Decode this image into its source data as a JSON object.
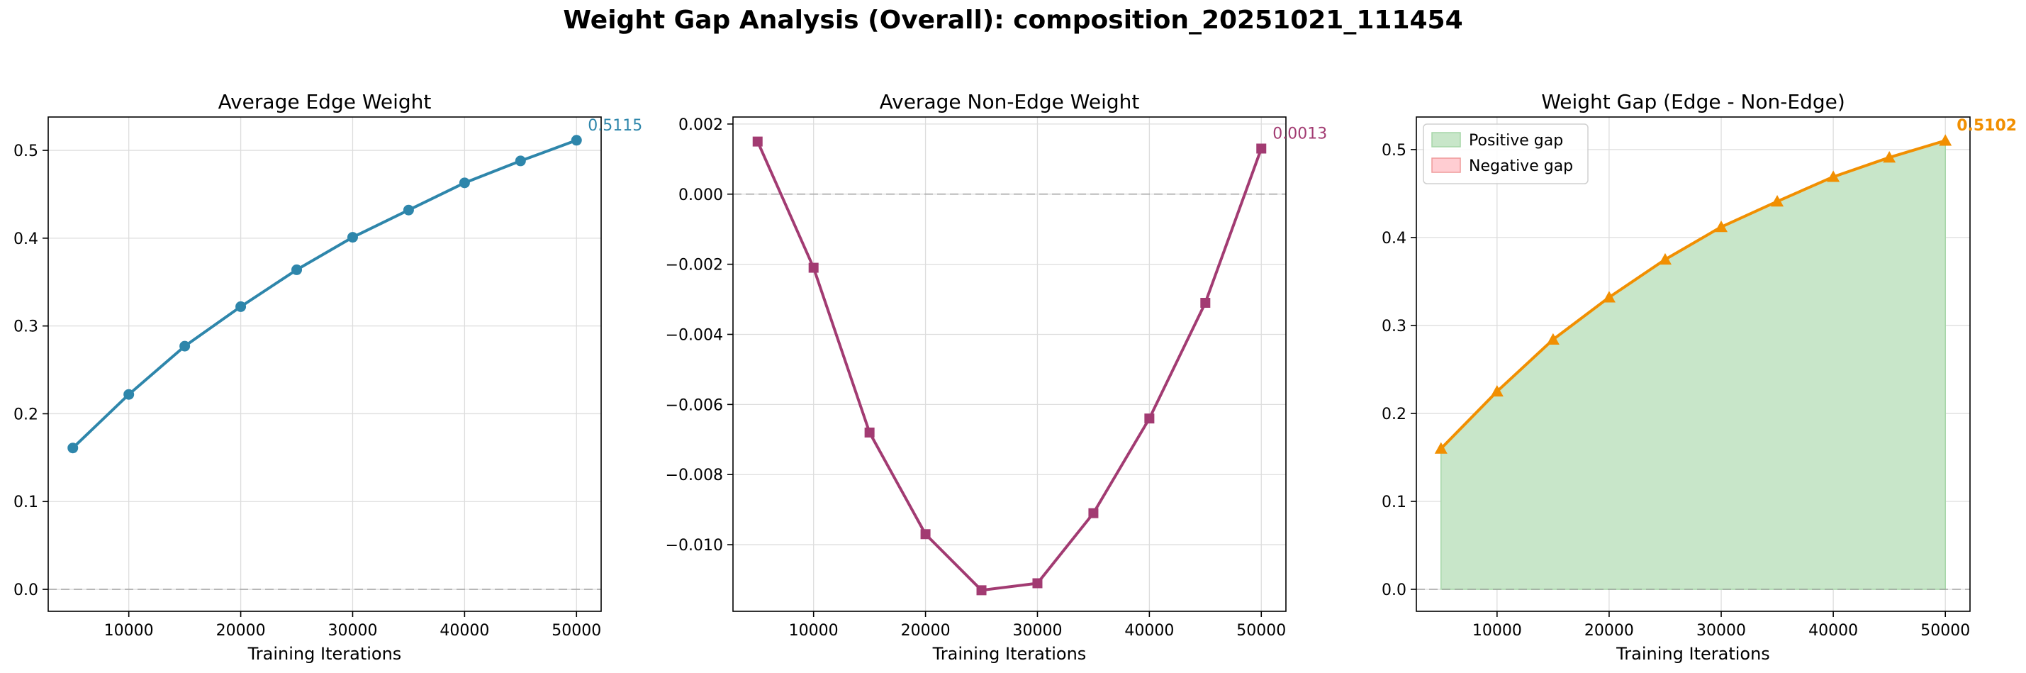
{
  "suptitle": "Weight Gap Analysis (Overall): composition_20251021_111454",
  "colors": {
    "edge": "#2e86ab",
    "nonedge": "#a23b72",
    "gap": "#f18f01",
    "positive_fill": "#c8e6c9",
    "negative_fill": "#ffcdd2",
    "zero_line": "#999999",
    "grid": "#dddddd"
  },
  "chart_data": [
    {
      "type": "line",
      "title": "Average Edge Weight",
      "xlabel": "Training Iterations",
      "ylabel": "",
      "marker": "circle",
      "color_key": "edge",
      "x": [
        5000,
        10000,
        15000,
        20000,
        25000,
        30000,
        35000,
        40000,
        45000,
        50000
      ],
      "y": [
        0.161,
        0.222,
        0.277,
        0.322,
        0.364,
        0.401,
        0.432,
        0.463,
        0.488,
        0.5115
      ],
      "xlim": [
        2800,
        52200
      ],
      "ylim": [
        -0.025,
        0.538
      ],
      "xticks": [
        10000,
        20000,
        30000,
        40000,
        50000
      ],
      "xtick_labels": [
        "10000",
        "20000",
        "30000",
        "40000",
        "50000"
      ],
      "yticks": [
        0.0,
        0.1,
        0.2,
        0.3,
        0.4,
        0.5
      ],
      "ytick_labels": [
        "0.0",
        "0.1",
        "0.2",
        "0.3",
        "0.4",
        "0.5"
      ],
      "zero_line": true,
      "grid": true,
      "final_label": "0.5115",
      "final_label_bold": false
    },
    {
      "type": "line",
      "title": "Average Non-Edge Weight",
      "xlabel": "Training Iterations",
      "ylabel": "",
      "marker": "square",
      "color_key": "nonedge",
      "x": [
        5000,
        10000,
        15000,
        20000,
        25000,
        30000,
        35000,
        40000,
        45000,
        50000
      ],
      "y": [
        0.0015,
        -0.0021,
        -0.0068,
        -0.0097,
        -0.0113,
        -0.0111,
        -0.0091,
        -0.0064,
        -0.0031,
        0.0013
      ],
      "xlim": [
        2800,
        52200
      ],
      "ylim": [
        -0.0119,
        0.0022
      ],
      "xticks": [
        10000,
        20000,
        30000,
        40000,
        50000
      ],
      "xtick_labels": [
        "10000",
        "20000",
        "30000",
        "40000",
        "50000"
      ],
      "yticks": [
        -0.01,
        -0.008,
        -0.006,
        -0.004,
        -0.002,
        0.0,
        0.002
      ],
      "ytick_labels": [
        "−0.010",
        "−0.008",
        "−0.006",
        "−0.004",
        "−0.002",
        "0.000",
        "0.002"
      ],
      "zero_line": true,
      "grid": true,
      "final_label": "0.0013",
      "final_label_bold": false
    },
    {
      "type": "area",
      "title": "Weight Gap (Edge - Non-Edge)",
      "xlabel": "Training Iterations",
      "ylabel": "",
      "marker": "triangle",
      "color_key": "gap",
      "x": [
        5000,
        10000,
        15000,
        20000,
        25000,
        30000,
        35000,
        40000,
        45000,
        50000
      ],
      "y": [
        0.16,
        0.225,
        0.284,
        0.332,
        0.375,
        0.412,
        0.441,
        0.469,
        0.491,
        0.5102
      ],
      "xlim": [
        2800,
        52200
      ],
      "ylim": [
        -0.025,
        0.537
      ],
      "xticks": [
        10000,
        20000,
        30000,
        40000,
        50000
      ],
      "xtick_labels": [
        "10000",
        "20000",
        "30000",
        "40000",
        "50000"
      ],
      "yticks": [
        0.0,
        0.1,
        0.2,
        0.3,
        0.4,
        0.5
      ],
      "ytick_labels": [
        "0.0",
        "0.1",
        "0.2",
        "0.3",
        "0.4",
        "0.5"
      ],
      "zero_line": true,
      "grid": true,
      "final_label": "0.5102",
      "final_label_bold": true,
      "legend": [
        "Positive gap",
        "Negative gap"
      ],
      "legend_position": "top-left"
    }
  ]
}
